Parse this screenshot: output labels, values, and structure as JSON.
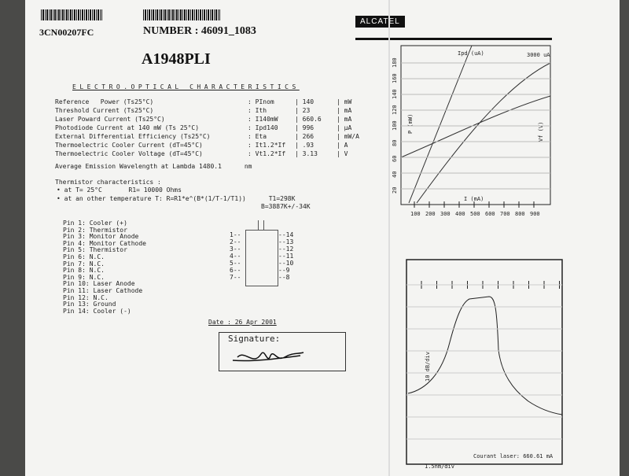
{
  "header": {
    "barcode_left": "3CN00207FC",
    "number": "NUMBER : 46091_1083",
    "logo": "ALCATEL",
    "part": "A1948PLI"
  },
  "section_title": "ELECTRO.OPTICAL CHARACTERISTICS",
  "table": {
    "rows": [
      [
        "Reference   Power (Ts25°C)",
        ": PInom",
        "| 140",
        "| mW"
      ],
      [
        "Threshold Current (Ts25°C)",
        ": Ith",
        "| 23",
        "| mA"
      ],
      [
        "Laser Poward Current (Ts25°C)",
        ": I140mW",
        "| 660.6",
        "| mA"
      ],
      [
        "Photodiode Current at 140 mW (Ts 25°C)",
        ": Ipd140",
        "| 996",
        "| µA"
      ],
      [
        "External Differential Efficiency (Ts25°C)",
        ": Eta",
        "| 266",
        "| mW/A"
      ],
      [
        "Thermoelectric Cooler Current (dT=45°C)",
        ": It1.2*If",
        "| .93",
        "| A"
      ],
      [
        "Thermoelectric Cooler Voltage (dT=45°C)",
        ": Vt1.2*If",
        "| 3.13",
        "| V"
      ]
    ]
  },
  "wavelength": "Average Emission Wavelength at Lambda 1480.1      nm",
  "thermistor": {
    "title": "Thermistor characteristics :",
    "lines": [
      "• at T= 25°C       R1= 10000 Ohms",
      "• at an other temperature T: R=R1*e^(B*(1/T-1/T1))      T1=298K"
    ],
    "b": "B=3887K+/-34K"
  },
  "pins": [
    "Pin 1: Cooler (+)",
    "Pin 2: Thermistor",
    "Pin 3: Monitor Anode",
    "Pin 4: Monitor Cathode",
    "Pin 5: Thermistor",
    "Pin 6: N.C.",
    "Pin 7: N.C.",
    "Pin 8: N.C.",
    "Pin 9: N.C.",
    "Pin 10: Laser Anode",
    "Pin 11: Laser Cathode",
    "Pin 12: N.C.",
    "Pin 13: Ground",
    "Pin 14: Cooler (-)"
  ],
  "pin_diagram": {
    "left": [
      "1--",
      "2--",
      "3--",
      "4--",
      "5--",
      "6--",
      "7--"
    ],
    "right": [
      "--14",
      "--13",
      "--12",
      "--11",
      "--10",
      "--9",
      "--8"
    ]
  },
  "date": "Date : 26 Apr 2001",
  "signature": "Signature:",
  "chart_top": {
    "ipd_label": "Ipd (uA)",
    "ipd_max": "3000 uA",
    "p_label": "P (mW)",
    "vf_label": "Vf (V)",
    "i_label": "I (mA)",
    "yticks": [
      "180",
      "160",
      "140",
      "120",
      "100",
      "80",
      "60",
      "40",
      "20"
    ],
    "xticks": [
      "100",
      "200",
      "300",
      "400",
      "500",
      "600",
      "700",
      "800",
      "900"
    ]
  },
  "chart_bottom": {
    "scale": "1.5nm/div",
    "ylabel": "10 dB/div",
    "current": "Courant laser: 660.61 mA"
  }
}
